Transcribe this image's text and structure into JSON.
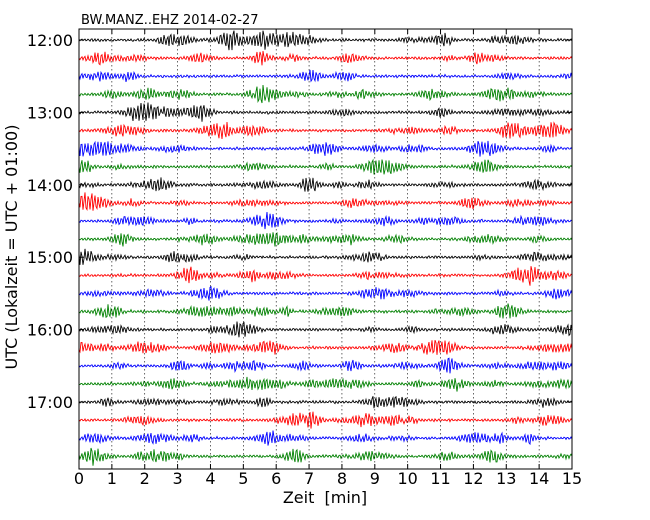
{
  "chart_data": {
    "type": "line",
    "title": "BW.MANZ..EHZ 2014-02-27",
    "xlabel": "Zeit  [min]",
    "ylabel": "UTC (Lokalzeit = UTC + 01:00)",
    "xlim": [
      0,
      15
    ],
    "x_ticks": [
      "0",
      "1",
      "2",
      "3",
      "4",
      "5",
      "6",
      "7",
      "8",
      "9",
      "10",
      "11",
      "12",
      "13",
      "14",
      "15"
    ],
    "y_tick_labels": [
      "12:00",
      "13:00",
      "14:00",
      "15:00",
      "16:00",
      "17:00"
    ],
    "traces_per_hour": 4,
    "trace_count": 24,
    "trace_colors": [
      "#000000",
      "#ff0000",
      "#0000ff",
      "#008000"
    ],
    "grid_x": "dotted",
    "legend": "none"
  }
}
